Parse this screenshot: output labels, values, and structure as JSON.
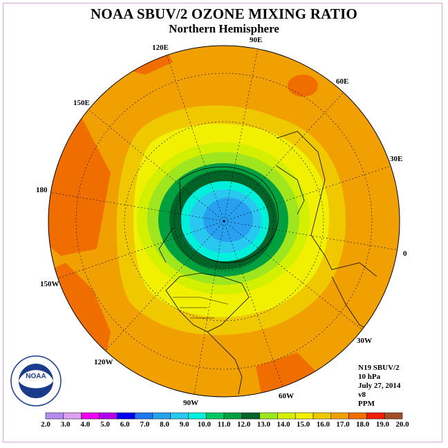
{
  "header": {
    "title": "NOAA SBUV/2 OZONE MIXING RATIO",
    "subtitle": "Northern Hemisphere"
  },
  "longitude_labels": [
    "90E",
    "60E",
    "30E",
    "0",
    "30W",
    "60W",
    "90W",
    "120W",
    "150W",
    "180",
    "150E",
    "120E"
  ],
  "info": {
    "satellite": "N19 SBUV/2",
    "pressure": "10 hPa",
    "date": "July 27, 2014",
    "version": "v8",
    "units": "PPM"
  },
  "logo": {
    "text": "NOAA",
    "ring_text": "NATIONAL OCEANIC AND ATMOSPHERIC ADMINISTRATION · U.S. DEPARTMENT OF COMMERCE"
  },
  "colorbar": {
    "ticks": [
      "2.0",
      "3.0",
      "4.0",
      "5.0",
      "6.0",
      "7.0",
      "8.0",
      "9.0",
      "10.0",
      "11.0",
      "12.0",
      "13.0",
      "14.0",
      "15.0",
      "16.0",
      "17.0",
      "18.0",
      "19.0",
      "20.0"
    ],
    "colors": [
      "#b48cf0",
      "#dca0f0",
      "#f000f0",
      "#b400f0",
      "#0000f0",
      "#1e78f0",
      "#28a0f0",
      "#28c8f0",
      "#00f0dc",
      "#00c864",
      "#00a040",
      "#006428",
      "#a0e61e",
      "#d2f000",
      "#f0f000",
      "#f0c800",
      "#f0a000",
      "#f06e00",
      "#f01e00",
      "#a05028"
    ]
  },
  "map_data": {
    "projection": "north polar stereographic",
    "field": "ozone mixing ratio (ppm) at 10 hPa",
    "contour_levels": [
      "12.0",
      "13.0",
      "14.0",
      "15.0",
      "16.0",
      "17.0",
      "18.0"
    ],
    "pole_minimum_range": [
      "9.0",
      "11.0"
    ]
  }
}
